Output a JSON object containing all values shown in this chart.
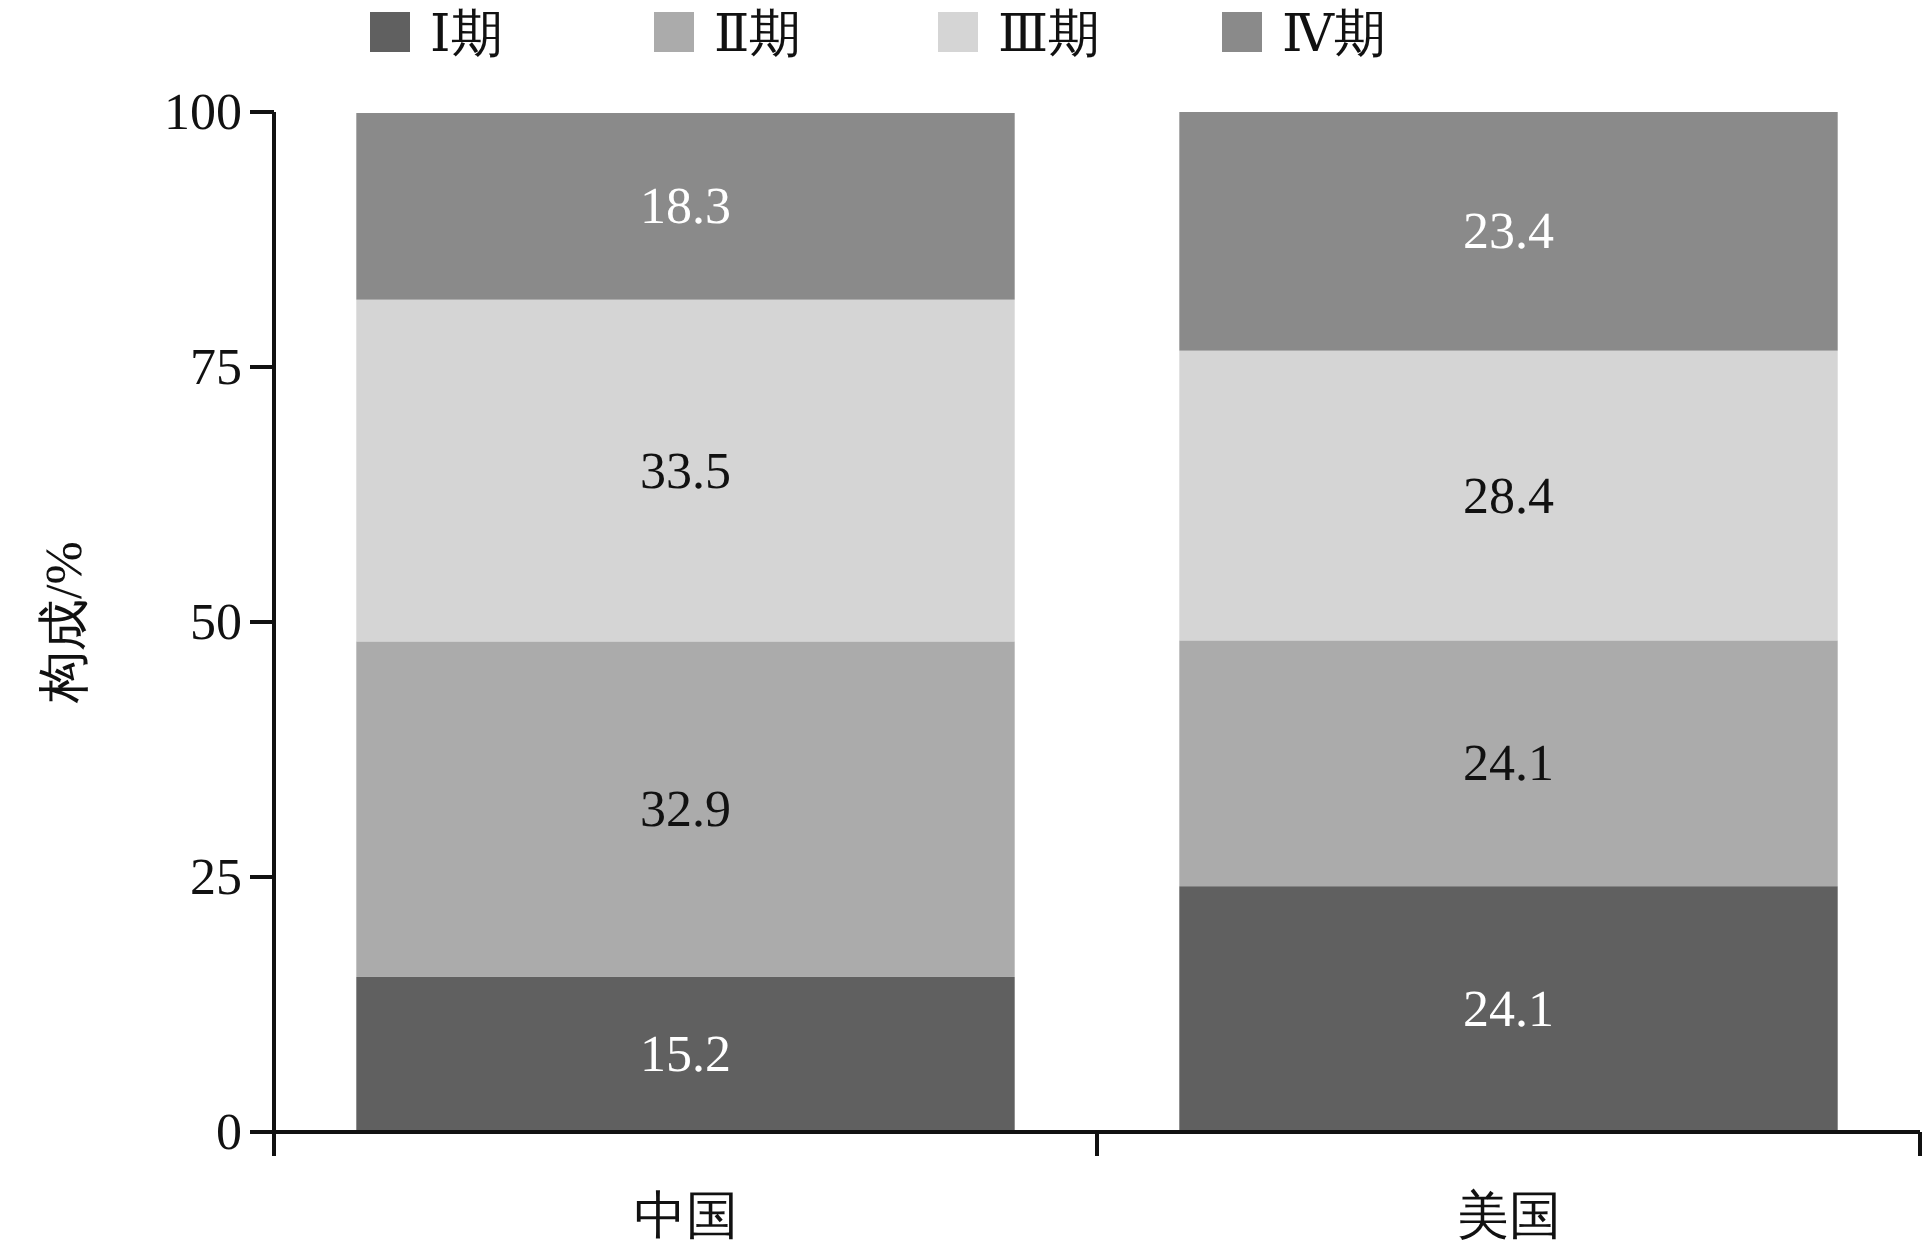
{
  "chart_data": {
    "type": "bar",
    "stacked": true,
    "ylabel": "构成/%",
    "categories": [
      "中国",
      "美国"
    ],
    "series": [
      {
        "name": "Ⅰ期",
        "color": "#606060",
        "values": [
          15.2,
          24.1
        ]
      },
      {
        "name": "Ⅱ期",
        "color": "#ababab",
        "values": [
          32.9,
          24.1
        ]
      },
      {
        "name": "Ⅲ期",
        "color": "#d5d5d5",
        "values": [
          33.5,
          28.4
        ]
      },
      {
        "name": "Ⅳ期",
        "color": "#8a8a8a",
        "values": [
          18.3,
          23.4
        ]
      }
    ],
    "ylim": [
      0,
      100
    ],
    "yticks": [
      0,
      25,
      50,
      75,
      100
    ],
    "grid": false,
    "legend": "top",
    "data_labels": true
  }
}
